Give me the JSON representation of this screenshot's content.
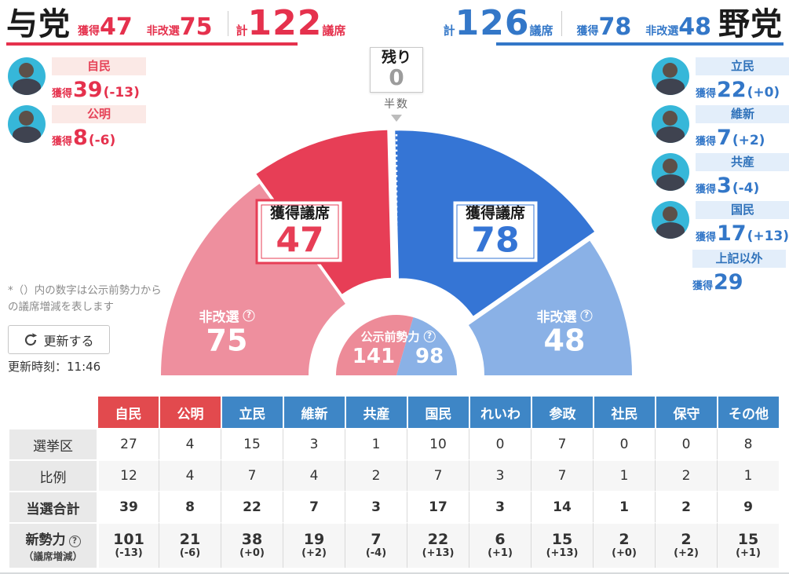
{
  "ui": {
    "help": "?",
    "gained_label": "獲得"
  },
  "header_left": {
    "party": "与党",
    "gained_label": "獲得",
    "gained": "47",
    "carry_label": "非改選",
    "carry": "75",
    "total_label": "計",
    "total": "122",
    "total_unit": "議席",
    "accent": "#e5314d"
  },
  "header_right": {
    "party": "野党",
    "total_label": "計",
    "total": "126",
    "total_unit": "議席",
    "gained_label": "獲得",
    "gained": "78",
    "carry_label": "非改選",
    "carry": "48",
    "accent": "#3377c8"
  },
  "remaining": {
    "label": "残り",
    "value": "0"
  },
  "half_label": "半数",
  "left_parties": [
    {
      "name": "自民",
      "gained": "39",
      "diff": "(-13)"
    },
    {
      "name": "公明",
      "gained": "8",
      "diff": "(-6)"
    }
  ],
  "right_parties": [
    {
      "name": "立民",
      "gained": "22",
      "diff": "(+0)"
    },
    {
      "name": "維新",
      "gained": "7",
      "diff": "(+2)"
    },
    {
      "name": "共産",
      "gained": "3",
      "diff": "(-4)"
    },
    {
      "name": "国民",
      "gained": "17",
      "diff": "(+13)"
    }
  ],
  "others": {
    "name": "上記以外",
    "gained": "29"
  },
  "note": "*（）内の数字は公示前勢力からの議席増減を表します",
  "refresh_button": "更新する",
  "updated": "更新時刻：11:46",
  "donut_labels": {
    "gained_seats": "獲得議席",
    "carry": "非改選",
    "pre_label": "公示前勢力"
  },
  "chart_data": [
    {
      "type": "pie",
      "shape": "semicircle-donut",
      "total_seats": 248,
      "majority": 124,
      "segments": [
        {
          "group": "与党",
          "label": "非改選",
          "value": 75,
          "color": "#ee8f9e",
          "exploded": false
        },
        {
          "group": "与党",
          "label": "獲得議席",
          "value": 47,
          "color": "#e73e56",
          "exploded": true
        },
        {
          "group": "野党",
          "label": "獲得議席",
          "value": 78,
          "color": "#3575d5",
          "exploded": true
        },
        {
          "group": "野党",
          "label": "非改選",
          "value": 48,
          "color": "#8ab1e6",
          "exploded": false
        }
      ],
      "inner_ring": {
        "label": "公示前勢力",
        "segments": [
          {
            "group": "与党",
            "value": 141,
            "color": "#ed8b98"
          },
          {
            "group": "野党",
            "value": 98,
            "color": "#8ab1e6"
          }
        ]
      },
      "separator": {
        "label": "半数",
        "at_seats": 124
      }
    },
    {
      "type": "table",
      "columns": [
        "自民",
        "公明",
        "立民",
        "維新",
        "共産",
        "国民",
        "れいわ",
        "参政",
        "社民",
        "保守",
        "その他"
      ],
      "column_colors": [
        "#e24a4e",
        "#e24a4e",
        "#3e86c6",
        "#3e86c6",
        "#3e86c6",
        "#3e86c6",
        "#3e86c6",
        "#3e86c6",
        "#3e86c6",
        "#3e86c6",
        "#3e86c6"
      ],
      "rows": [
        {
          "label": "選挙区",
          "values": [
            27,
            4,
            15,
            3,
            1,
            10,
            0,
            7,
            0,
            0,
            8
          ]
        },
        {
          "label": "比例",
          "values": [
            12,
            4,
            7,
            4,
            2,
            7,
            3,
            7,
            1,
            2,
            1
          ]
        },
        {
          "label": "当選合計",
          "values": [
            39,
            8,
            22,
            7,
            3,
            17,
            3,
            14,
            1,
            2,
            9
          ]
        },
        {
          "label": "新勢力",
          "sublabel": "（議席増減）",
          "help": true,
          "values": [
            101,
            21,
            38,
            19,
            7,
            22,
            6,
            15,
            2,
            2,
            15
          ],
          "diffs": [
            "(-13)",
            "(-6)",
            "(+0)",
            "(+2)",
            "(-4)",
            "(+13)",
            "(+1)",
            "(+13)",
            "(+0)",
            "(+2)",
            "(+1)"
          ]
        }
      ]
    }
  ]
}
